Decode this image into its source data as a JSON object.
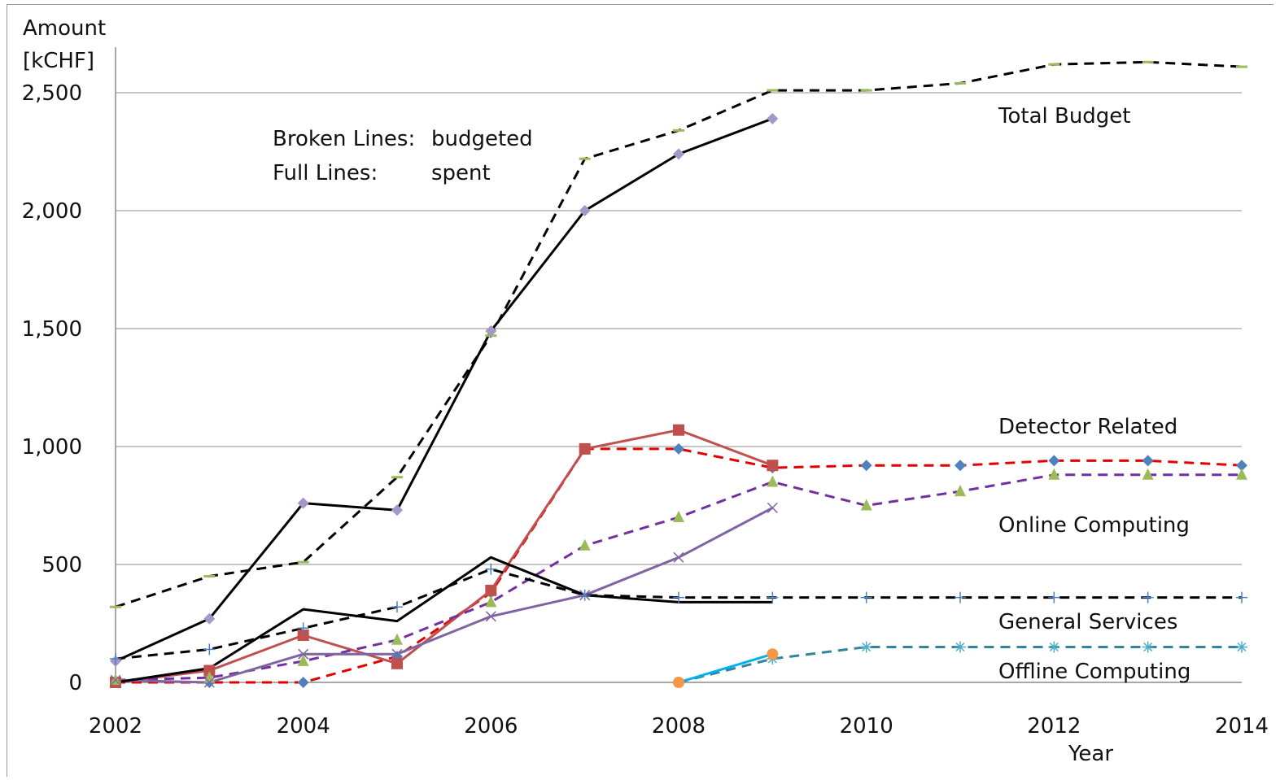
{
  "chart_data": {
    "type": "line",
    "ylabel_line1": "Amount",
    "ylabel_line2": "[kCHF]",
    "xlabel": "Year",
    "xlim": [
      2002,
      2014
    ],
    "ylim": [
      0,
      2500
    ],
    "x_ticks": [
      "2002",
      "2004",
      "2006",
      "2008",
      "2010",
      "2012",
      "2014"
    ],
    "y_ticks": [
      "0",
      "500",
      "1,000",
      "1,500",
      "2,000",
      "2,500"
    ],
    "grid": true,
    "annotation_line1_key": "Broken Lines:",
    "annotation_line1_value": "budgeted",
    "annotation_line2_key": "Full Lines:",
    "annotation_line2_value": "spent",
    "labels": {
      "total": "Total Budget",
      "detector": "Detector Related",
      "online": "Online Computing",
      "general": "General Services",
      "offline": "Offline Computing"
    },
    "series": [
      {
        "key": "total",
        "group": "total",
        "kind": "budgeted",
        "color": "#000000",
        "marker": "dash",
        "marker_color": "#9bbb59",
        "x": [
          2002,
          2003,
          2004,
          2005,
          2006,
          2007,
          2008,
          2009,
          2010,
          2011,
          2012,
          2013,
          2014
        ],
        "y": [
          320,
          450,
          510,
          870,
          1470,
          2220,
          2340,
          2510,
          2510,
          2540,
          2620,
          2630,
          2610
        ]
      },
      {
        "key": "total",
        "group": "total",
        "kind": "spent",
        "color": "#000000",
        "marker": "diamond",
        "marker_color": "#a598c8",
        "x": [
          2002,
          2003,
          2004,
          2005,
          2006,
          2007,
          2008,
          2009
        ],
        "y": [
          90,
          270,
          760,
          730,
          1490,
          2000,
          2240,
          2390
        ]
      },
      {
        "key": "detector",
        "group": "detector",
        "kind": "budgeted",
        "color": "#e00000",
        "marker": "diamond",
        "marker_color": "#4f81bd",
        "x": [
          2002,
          2003,
          2004,
          2005,
          2006,
          2007,
          2008,
          2009,
          2010,
          2011,
          2012,
          2013,
          2014
        ],
        "y": [
          0,
          0,
          0,
          110,
          380,
          990,
          990,
          910,
          920,
          920,
          940,
          940,
          920
        ]
      },
      {
        "key": "detector",
        "group": "detector",
        "kind": "spent",
        "color": "#c0504d",
        "marker": "square",
        "marker_color": "#c0504d",
        "x": [
          2002,
          2003,
          2004,
          2005,
          2006,
          2007,
          2008,
          2009
        ],
        "y": [
          0,
          50,
          200,
          80,
          390,
          990,
          1070,
          920
        ]
      },
      {
        "key": "online",
        "group": "online",
        "kind": "budgeted",
        "color": "#7030a0",
        "marker": "triangle",
        "marker_color": "#9bbb59",
        "x": [
          2002,
          2003,
          2004,
          2005,
          2006,
          2007,
          2008,
          2009,
          2010,
          2011,
          2012,
          2013,
          2014
        ],
        "y": [
          10,
          20,
          90,
          180,
          340,
          580,
          700,
          850,
          750,
          810,
          880,
          880,
          880
        ]
      },
      {
        "key": "online",
        "group": "online",
        "kind": "spent",
        "color": "#8064a2",
        "marker": "x",
        "marker_color": "#8064a2",
        "x": [
          2002,
          2003,
          2004,
          2005,
          2006,
          2007,
          2008,
          2009
        ],
        "y": [
          10,
          0,
          120,
          120,
          280,
          370,
          530,
          740
        ]
      },
      {
        "key": "general",
        "group": "general",
        "kind": "budgeted",
        "color": "#000000",
        "marker": "plus",
        "marker_color": "#4f81bd",
        "x": [
          2002,
          2003,
          2004,
          2005,
          2006,
          2007,
          2008,
          2009,
          2010,
          2011,
          2012,
          2013,
          2014
        ],
        "y": [
          100,
          140,
          230,
          320,
          480,
          370,
          360,
          360,
          360,
          360,
          360,
          360,
          360
        ]
      },
      {
        "key": "general",
        "group": "general",
        "kind": "spent",
        "color": "#000000",
        "marker": "none",
        "marker_color": "#000000",
        "x": [
          2002,
          2003,
          2004,
          2005,
          2006,
          2007,
          2008,
          2009
        ],
        "y": [
          0,
          60,
          310,
          260,
          530,
          370,
          340,
          340
        ]
      },
      {
        "key": "offline",
        "group": "offline",
        "kind": "budgeted",
        "color": "#31859c",
        "marker": "asterisk",
        "marker_color": "#4bacc6",
        "x": [
          2008,
          2009,
          2010,
          2011,
          2012,
          2013,
          2014
        ],
        "y": [
          0,
          100,
          150,
          150,
          150,
          150,
          150
        ]
      },
      {
        "key": "offline",
        "group": "offline",
        "kind": "spent",
        "color": "#00b0f0",
        "marker": "circle",
        "marker_color": "#f79646",
        "x": [
          2008,
          2009
        ],
        "y": [
          0,
          120
        ]
      }
    ]
  }
}
